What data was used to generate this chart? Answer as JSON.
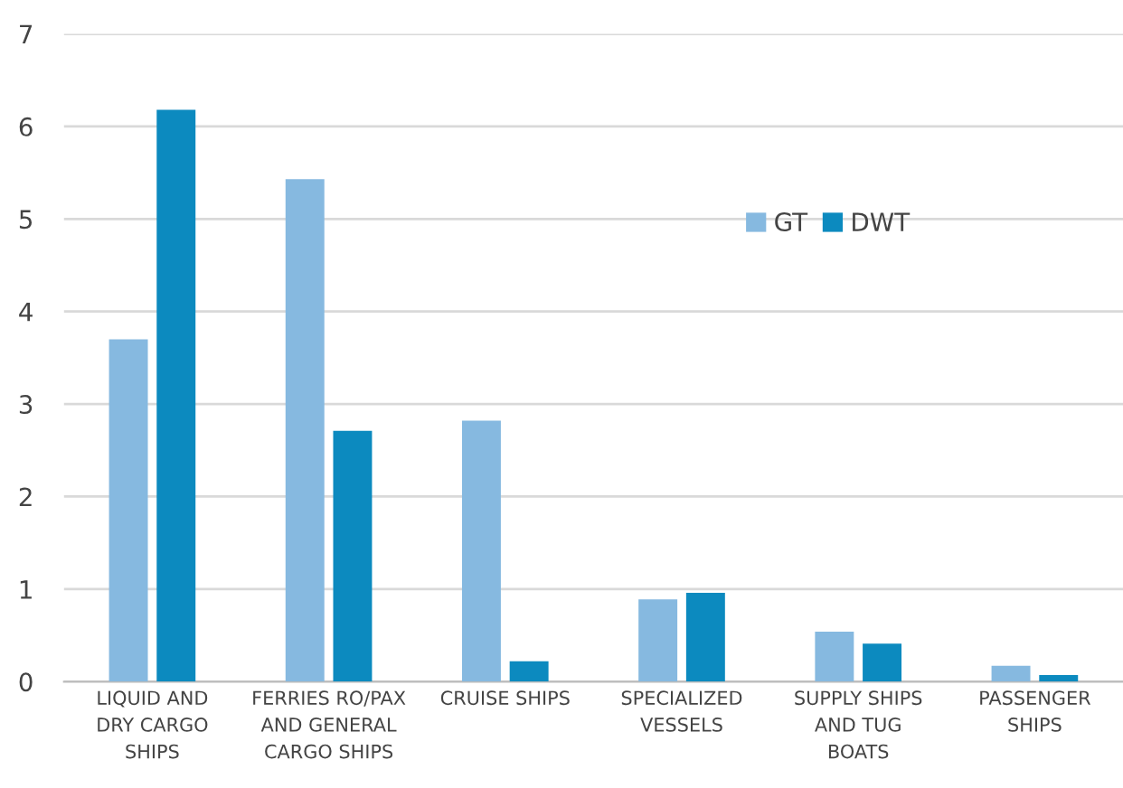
{
  "chart_data": {
    "type": "bar",
    "categories": [
      "LIQUID AND\nDRY CARGO\nSHIPS",
      "FERRIES RO/PAX\nAND GENERAL\nCARGO SHIPS",
      "CRUISE SHIPS",
      "SPECIALIZED\nVESSELS",
      "SUPPLY SHIPS\nAND TUG\nBOATS",
      "PASSENGER\nSHIPS"
    ],
    "series": [
      {
        "name": "GT",
        "color": "#86b9e0",
        "values": [
          3.7,
          5.43,
          2.82,
          0.89,
          0.54,
          0.17
        ]
      },
      {
        "name": "DWT",
        "color": "#0c8abf",
        "values": [
          6.18,
          2.71,
          0.22,
          0.96,
          0.41,
          0.07
        ]
      }
    ],
    "ylim": [
      0,
      7
    ],
    "yticks": [
      0,
      1,
      2,
      3,
      4,
      5,
      6,
      7
    ],
    "grid": "y",
    "legend": "top right"
  }
}
